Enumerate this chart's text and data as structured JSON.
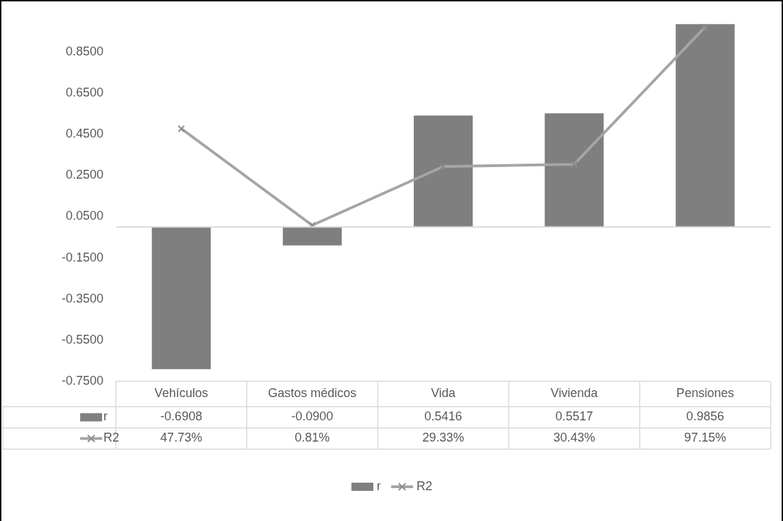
{
  "chart_data": {
    "type": "bar",
    "categories": [
      "Vehículos",
      "Gastos médicos",
      "Vida",
      "Vivienda",
      "Pensiones"
    ],
    "series": [
      {
        "name": "r",
        "color": "#7f7f7f",
        "values": [
          -0.6908,
          -0.09,
          0.5416,
          0.5517,
          0.9856
        ],
        "value_labels": [
          "-0.6908",
          "-0.0900",
          "0.5416",
          "0.5517",
          "0.9856"
        ]
      },
      {
        "name": "R2",
        "type": "line",
        "color": "#a5a5a5",
        "marker": "cross",
        "values": [
          0.4773,
          0.0081,
          0.2933,
          0.3043,
          0.9715
        ],
        "value_labels": [
          "47.73%",
          "0.81%",
          "29.33%",
          "30.43%",
          "97.15%"
        ]
      }
    ],
    "ylim": [
      -0.75,
      1.0
    ],
    "yticks": [
      {
        "value": -0.75,
        "label": "-0.7500"
      },
      {
        "value": -0.55,
        "label": "-0.5500"
      },
      {
        "value": -0.35,
        "label": "-0.3500"
      },
      {
        "value": -0.15,
        "label": "-0.1500"
      },
      {
        "value": 0.05,
        "label": "0.0500"
      },
      {
        "value": 0.25,
        "label": "0.2500"
      },
      {
        "value": 0.45,
        "label": "0.4500"
      },
      {
        "value": 0.65,
        "label": "0.6500"
      },
      {
        "value": 0.85,
        "label": "0.8500"
      }
    ],
    "grid": false,
    "legend": "bottom"
  }
}
